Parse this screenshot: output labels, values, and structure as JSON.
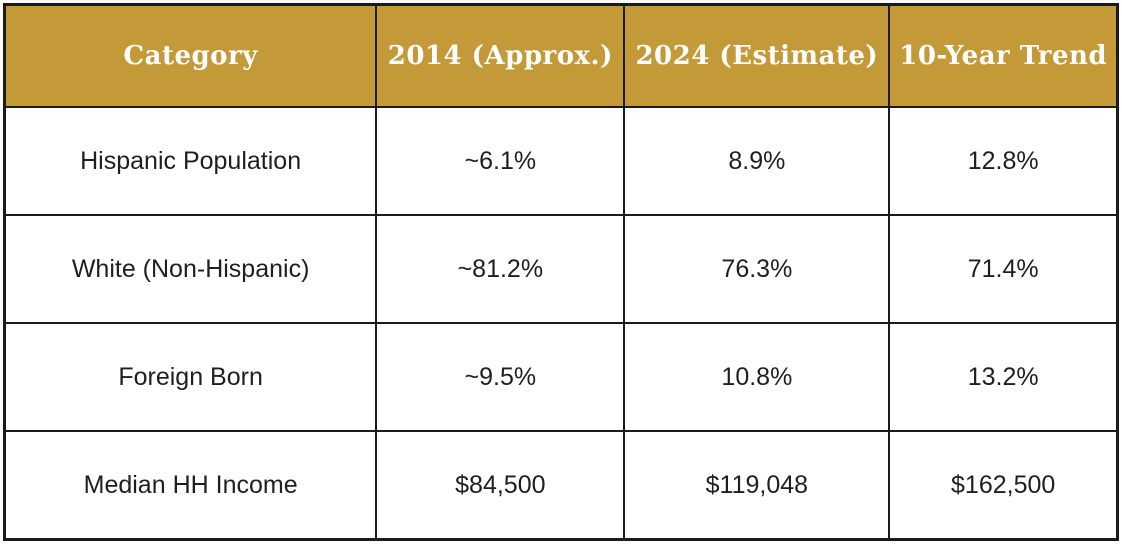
{
  "chart_data": {
    "type": "table",
    "title": "",
    "columns": [
      "Category",
      "2014 (Approx.)",
      "2024 (Estimate)",
      "10-Year Trend"
    ],
    "rows": [
      [
        "Hispanic Population",
        "~6.1%",
        "8.9%",
        "12.8%"
      ],
      [
        "White (Non-Hispanic)",
        "~81.2%",
        "76.3%",
        "71.4%"
      ],
      [
        "Foreign Born",
        "~9.5%",
        "10.8%",
        "13.2%"
      ],
      [
        "Median HH Income",
        "$84,500",
        "$119,048",
        "$162,500"
      ]
    ]
  },
  "colors": {
    "header_bg": "#c49a38",
    "header_text": "#ffffff",
    "border": "#1b1b1b",
    "body_text": "#1f1f1f",
    "page_bg": "#ffffff"
  }
}
